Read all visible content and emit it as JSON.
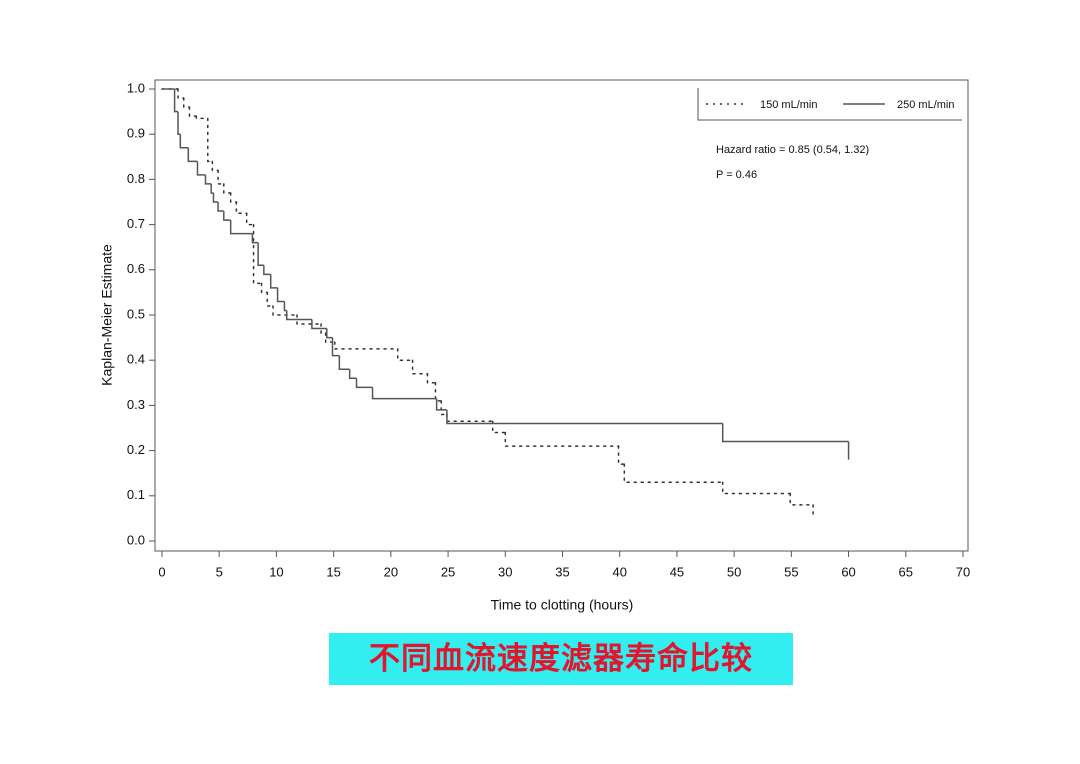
{
  "chart_data": {
    "type": "step",
    "x_label": "Time to clotting (hours)",
    "y_label": "Kaplan-Meier Estimate",
    "xlim": [
      0,
      70
    ],
    "xticks": [
      0,
      5,
      10,
      15,
      20,
      25,
      30,
      35,
      40,
      45,
      50,
      55,
      60,
      65,
      70
    ],
    "ylim": [
      0,
      1
    ],
    "yticks": [
      {
        "value": 0,
        "label": "0.0"
      },
      0.1,
      0.2,
      0.3,
      0.4,
      0.5,
      0.6,
      0.7,
      0.8,
      0.9,
      {
        "value": 1,
        "label": "1.0"
      }
    ],
    "grid": false,
    "legend": "upper right",
    "annotations": [
      "Hazard ratio = 0.85 (0.54, 1.32)",
      "P = 0.46"
    ],
    "series": [
      {
        "name": "150 mL/min",
        "color": "#333333",
        "line_style": "dotted",
        "x": [
          0,
          1.4,
          1.9,
          2.4,
          3,
          4,
          4.4,
          4.9,
          5.4,
          6,
          6.5,
          7.4,
          8,
          8.7,
          9.2,
          9.7,
          11.8,
          13.9,
          14.3,
          15.1,
          20.6,
          21.9,
          23.2,
          23.9,
          24.4,
          24.9,
          28.9,
          30,
          39.9,
          40.4,
          49,
          54.9,
          56.9,
          57
        ],
        "values": [
          1,
          0.98,
          0.96,
          0.94,
          0.935,
          0.84,
          0.82,
          0.79,
          0.77,
          0.75,
          0.725,
          0.7,
          0.57,
          0.55,
          0.52,
          0.5,
          0.48,
          0.46,
          0.44,
          0.425,
          0.4,
          0.37,
          0.35,
          0.31,
          0.28,
          0.265,
          0.24,
          0.21,
          0.17,
          0.13,
          0.105,
          0.08,
          0.055,
          0.055
        ]
      },
      {
        "name": "250 mL/min",
        "color": "#555555",
        "line_style": "solid",
        "x": [
          0,
          1.1,
          1.4,
          1.6,
          2.3,
          3.1,
          3.8,
          4.3,
          4.5,
          4.9,
          5.4,
          6,
          7.9,
          8.4,
          8.9,
          9.5,
          10.1,
          10.7,
          10.9,
          13.1,
          14.4,
          14.9,
          15.5,
          16.4,
          17,
          18.4,
          24,
          24.9,
          49,
          60
        ],
        "values": [
          1,
          0.95,
          0.9,
          0.87,
          0.84,
          0.81,
          0.79,
          0.77,
          0.75,
          0.73,
          0.71,
          0.68,
          0.66,
          0.61,
          0.59,
          0.56,
          0.53,
          0.51,
          0.49,
          0.47,
          0.45,
          0.41,
          0.38,
          0.36,
          0.34,
          0.315,
          0.29,
          0.26,
          0.22,
          0.18
        ]
      }
    ]
  },
  "caption": "不同血流速度滤器寿命比较"
}
